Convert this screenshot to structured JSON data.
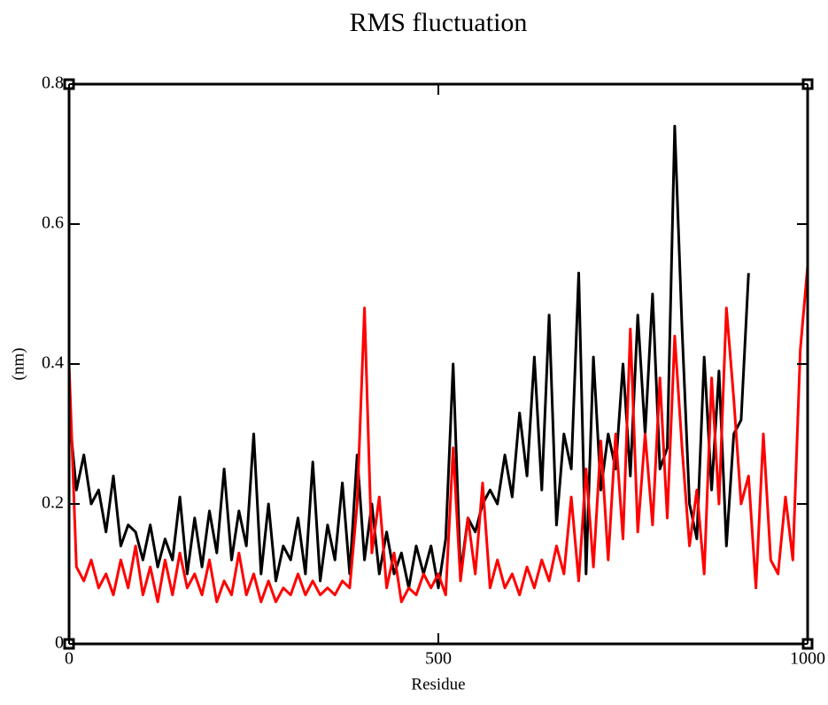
{
  "chart_data": {
    "type": "line",
    "title": "RMS fluctuation",
    "x_label": "Residue",
    "y_label": "(nm)",
    "x": [
      0,
      10,
      20,
      30,
      40,
      50,
      60,
      70,
      80,
      90,
      100,
      110,
      120,
      130,
      140,
      150,
      160,
      170,
      180,
      190,
      200,
      210,
      220,
      230,
      240,
      250,
      260,
      270,
      280,
      290,
      300,
      310,
      320,
      330,
      340,
      350,
      360,
      370,
      380,
      390,
      400,
      410,
      420,
      430,
      440,
      450,
      460,
      470,
      480,
      490,
      500,
      510,
      520,
      530,
      540,
      550,
      560,
      570,
      580,
      590,
      600,
      610,
      620,
      630,
      640,
      650,
      660,
      670,
      680,
      690,
      700,
      710,
      720,
      730,
      740,
      750,
      760,
      770,
      780,
      790,
      800,
      810,
      820,
      830,
      840,
      850,
      860,
      870,
      880,
      890,
      900,
      910,
      920,
      930,
      940,
      950,
      960,
      970,
      980,
      990,
      1000
    ],
    "series": [
      {
        "color": "#000000",
        "values": [
          0.33,
          0.22,
          0.27,
          0.2,
          0.22,
          0.16,
          0.24,
          0.14,
          0.17,
          0.16,
          0.12,
          0.17,
          0.11,
          0.15,
          0.12,
          0.21,
          0.1,
          0.18,
          0.11,
          0.19,
          0.13,
          0.25,
          0.12,
          0.19,
          0.14,
          0.3,
          0.1,
          0.2,
          0.09,
          0.14,
          0.12,
          0.18,
          0.1,
          0.26,
          0.09,
          0.17,
          0.12,
          0.23,
          0.1,
          0.27,
          0.12,
          0.2,
          0.1,
          0.16,
          0.1,
          0.13,
          0.08,
          0.14,
          0.1,
          0.14,
          0.08,
          0.15,
          0.4,
          0.1,
          0.18,
          0.16,
          0.2,
          0.22,
          0.2,
          0.27,
          0.21,
          0.33,
          0.24,
          0.41,
          0.22,
          0.47,
          0.17,
          0.3,
          0.25,
          0.53,
          0.1,
          0.41,
          0.22,
          0.3,
          0.25,
          0.4,
          0.24,
          0.47,
          0.3,
          0.5,
          0.25,
          0.28,
          0.74,
          0.45,
          0.2,
          0.15,
          0.41,
          0.22,
          0.39,
          0.14,
          0.3,
          0.32,
          0.53,
          null,
          null,
          null,
          null,
          null,
          null,
          null,
          null
        ]
      },
      {
        "color": "#ff0000",
        "values": [
          0.4,
          0.11,
          0.09,
          0.12,
          0.08,
          0.1,
          0.07,
          0.12,
          0.08,
          0.14,
          0.07,
          0.11,
          0.06,
          0.12,
          0.07,
          0.13,
          0.08,
          0.1,
          0.07,
          0.12,
          0.06,
          0.09,
          0.07,
          0.13,
          0.07,
          0.1,
          0.06,
          0.09,
          0.06,
          0.08,
          0.07,
          0.1,
          0.07,
          0.09,
          0.07,
          0.08,
          0.07,
          0.09,
          0.08,
          0.2,
          0.48,
          0.13,
          0.21,
          0.08,
          0.13,
          0.06,
          0.08,
          0.07,
          0.1,
          0.08,
          0.1,
          0.07,
          0.28,
          0.09,
          0.18,
          0.1,
          0.23,
          0.08,
          0.12,
          0.08,
          0.1,
          0.07,
          0.11,
          0.08,
          0.12,
          0.09,
          0.14,
          0.1,
          0.21,
          0.09,
          0.25,
          0.11,
          0.29,
          0.12,
          0.3,
          0.15,
          0.45,
          0.16,
          0.3,
          0.17,
          0.38,
          0.18,
          0.44,
          0.28,
          0.14,
          0.22,
          0.1,
          0.38,
          0.2,
          0.48,
          0.35,
          0.2,
          0.24,
          0.08,
          0.3,
          0.12,
          0.1,
          0.21,
          0.12,
          0.42,
          0.54
        ]
      }
    ],
    "xlim": [
      0,
      1000
    ],
    "xticks": [
      0,
      500,
      1000
    ],
    "ylim": [
      0,
      0.8
    ],
    "yticks": [
      0,
      0.2,
      0.4,
      0.6,
      0.8
    ]
  }
}
